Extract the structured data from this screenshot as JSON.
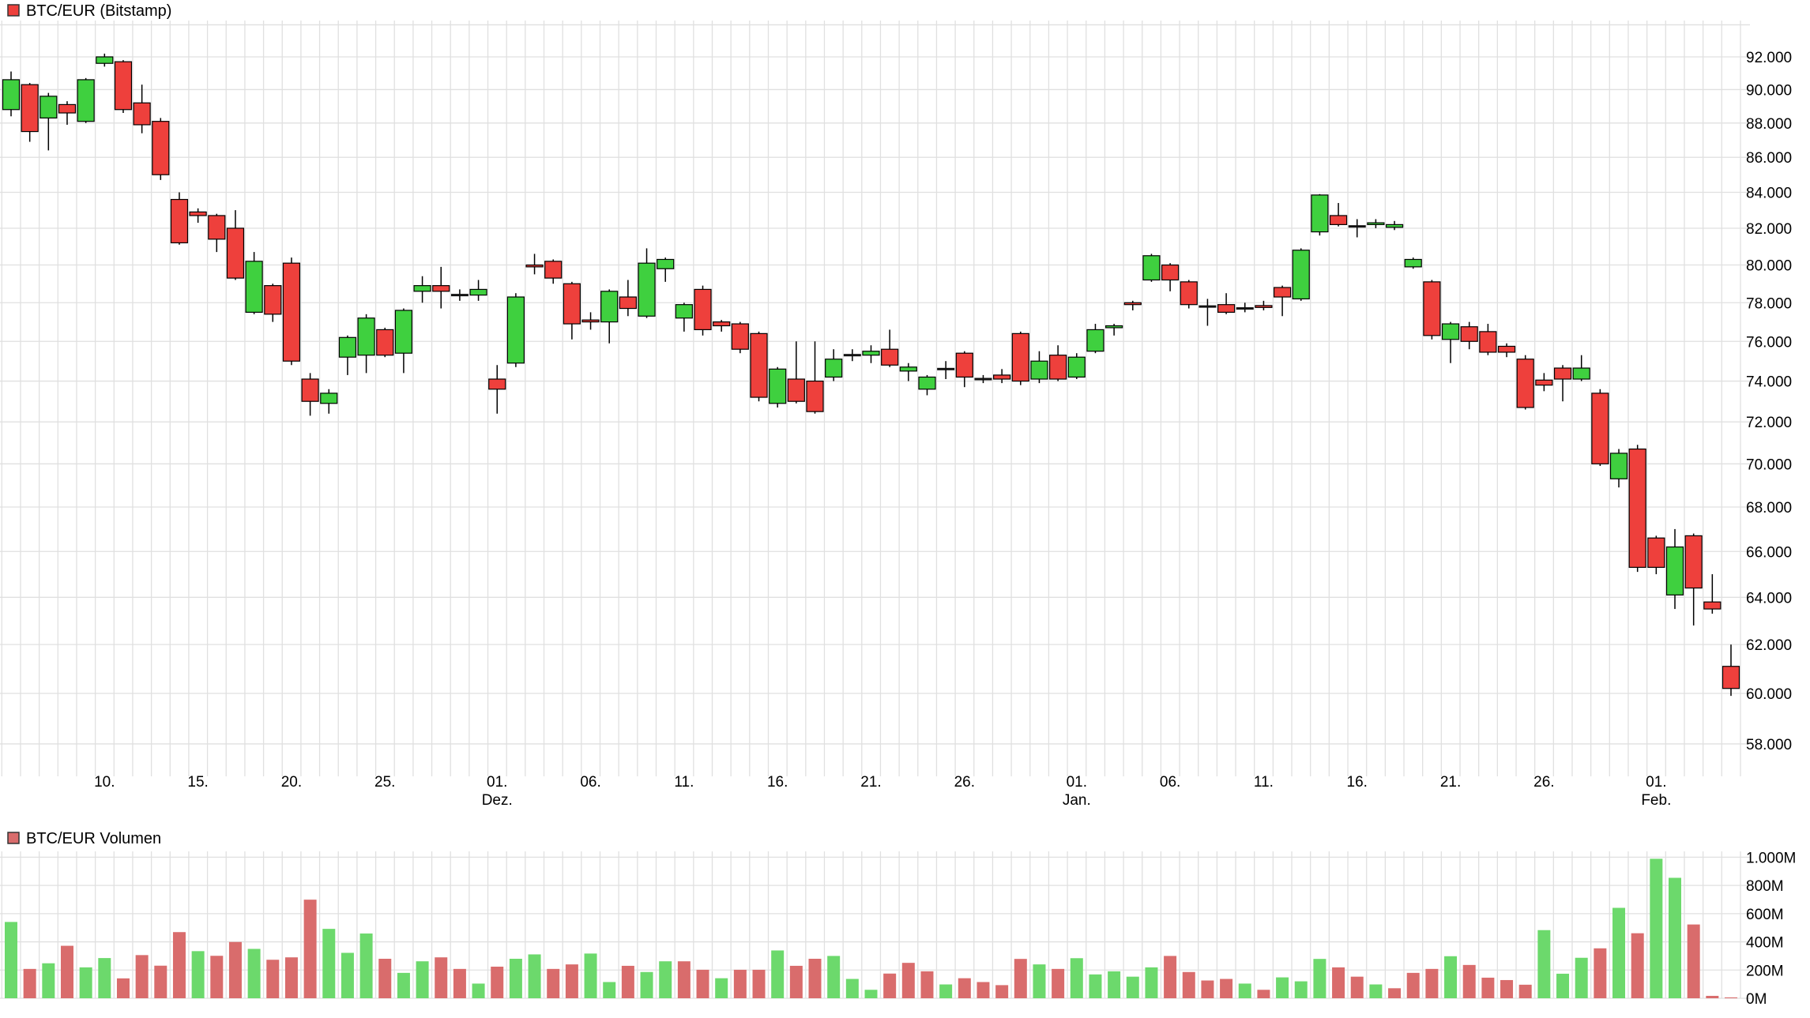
{
  "price_legend": {
    "label": "BTC/EUR (Bitstamp)",
    "marker_color": "#ee403c"
  },
  "volume_legend": {
    "label": "BTC/EUR Volumen",
    "marker_color": "#d96c6c"
  },
  "colors": {
    "candle_up": "#3fd03f",
    "candle_down": "#ee403c",
    "candle_doji": "#111111",
    "wick": "#000000",
    "volume_up": "#6cd96c",
    "volume_down": "#d96c6c",
    "grid": "#e0e0e0",
    "text": "#000000",
    "background": "#ffffff"
  },
  "chart_data": {
    "type": "candlestick",
    "title": "BTC/EUR (Bitstamp)",
    "subtitle_volume": "BTC/EUR Volumen",
    "price_scale": "log",
    "price_unit": "EUR, values in thousands (tick 92 = 92.000)",
    "volume_unit": "M",
    "grid": true,
    "legend_position": "top-left",
    "price_axis_ticks": [
      {
        "value": 94,
        "label": ""
      },
      {
        "value": 92,
        "label": "92.000"
      },
      {
        "value": 90,
        "label": "90.000"
      },
      {
        "value": 88,
        "label": "88.000"
      },
      {
        "value": 86,
        "label": "86.000"
      },
      {
        "value": 84,
        "label": "84.000"
      },
      {
        "value": 82,
        "label": "82.000"
      },
      {
        "value": 80,
        "label": "80.000"
      },
      {
        "value": 78,
        "label": "78.000"
      },
      {
        "value": 76,
        "label": "76.000"
      },
      {
        "value": 74,
        "label": "74.000"
      },
      {
        "value": 72,
        "label": "72.000"
      },
      {
        "value": 70,
        "label": "70.000"
      },
      {
        "value": 68,
        "label": "68.000"
      },
      {
        "value": 66,
        "label": "66.000"
      },
      {
        "value": 64,
        "label": "64.000"
      },
      {
        "value": 62,
        "label": "62.000"
      },
      {
        "value": 60,
        "label": "60.000"
      },
      {
        "value": 58,
        "label": "58.000"
      }
    ],
    "volume_axis_ticks": [
      {
        "value": 1000,
        "label": "1.000M"
      },
      {
        "value": 800,
        "label": "800M"
      },
      {
        "value": 600,
        "label": "600M"
      },
      {
        "value": 400,
        "label": "400M"
      },
      {
        "value": 200,
        "label": "200M"
      },
      {
        "value": 0,
        "label": "0M"
      }
    ],
    "x_axis_labels": [
      {
        "index": 5,
        "label": "10.",
        "month": ""
      },
      {
        "index": 10,
        "label": "15.",
        "month": ""
      },
      {
        "index": 15,
        "label": "20.",
        "month": ""
      },
      {
        "index": 20,
        "label": "25.",
        "month": ""
      },
      {
        "index": 26,
        "label": "01.",
        "month": "Dez."
      },
      {
        "index": 31,
        "label": "06.",
        "month": ""
      },
      {
        "index": 36,
        "label": "11.",
        "month": ""
      },
      {
        "index": 41,
        "label": "16.",
        "month": ""
      },
      {
        "index": 46,
        "label": "21.",
        "month": ""
      },
      {
        "index": 51,
        "label": "26.",
        "month": ""
      },
      {
        "index": 57,
        "label": "01.",
        "month": "Jan."
      },
      {
        "index": 62,
        "label": "06.",
        "month": ""
      },
      {
        "index": 67,
        "label": "11.",
        "month": ""
      },
      {
        "index": 72,
        "label": "16.",
        "month": ""
      },
      {
        "index": 77,
        "label": "21.",
        "month": ""
      },
      {
        "index": 82,
        "label": "26.",
        "month": ""
      },
      {
        "index": 88,
        "label": "01.",
        "month": "Feb."
      }
    ],
    "days": [
      {
        "o": 88.8,
        "h": 91.1,
        "l": 88.4,
        "c": 90.6,
        "v": 541,
        "u": 1
      },
      {
        "o": 90.3,
        "h": 90.4,
        "l": 86.9,
        "c": 87.5,
        "v": 208,
        "u": 0
      },
      {
        "o": 88.3,
        "h": 89.8,
        "l": 86.4,
        "c": 89.6,
        "v": 248,
        "u": 1
      },
      {
        "o": 89.1,
        "h": 89.3,
        "l": 87.9,
        "c": 88.6,
        "v": 372,
        "u": 0
      },
      {
        "o": 88.1,
        "h": 90.7,
        "l": 88.0,
        "c": 90.6,
        "v": 219,
        "u": 1
      },
      {
        "o": 91.6,
        "h": 92.2,
        "l": 91.4,
        "c": 92.0,
        "v": 285,
        "u": 1
      },
      {
        "o": 91.7,
        "h": 91.8,
        "l": 88.6,
        "c": 88.8,
        "v": 141,
        "u": 0
      },
      {
        "o": 89.2,
        "h": 90.3,
        "l": 87.4,
        "c": 87.9,
        "v": 306,
        "u": 0
      },
      {
        "o": 88.1,
        "h": 88.3,
        "l": 84.7,
        "c": 85.0,
        "v": 231,
        "u": 0
      },
      {
        "o": 83.6,
        "h": 84.0,
        "l": 81.1,
        "c": 81.2,
        "v": 469,
        "u": 0
      },
      {
        "o": 82.9,
        "h": 83.1,
        "l": 82.3,
        "c": 82.7,
        "v": 334,
        "u": 1
      },
      {
        "o": 82.7,
        "h": 82.8,
        "l": 80.7,
        "c": 81.4,
        "v": 301,
        "u": 0
      },
      {
        "o": 82.0,
        "h": 83.0,
        "l": 79.2,
        "c": 79.3,
        "v": 399,
        "u": 0
      },
      {
        "o": 77.5,
        "h": 80.7,
        "l": 77.4,
        "c": 80.2,
        "v": 350,
        "u": 1
      },
      {
        "o": 78.9,
        "h": 79.0,
        "l": 77.0,
        "c": 77.4,
        "v": 273,
        "u": 0
      },
      {
        "o": 80.1,
        "h": 80.4,
        "l": 74.8,
        "c": 75.0,
        "v": 290,
        "u": 0
      },
      {
        "o": 74.1,
        "h": 74.4,
        "l": 72.3,
        "c": 73.0,
        "v": 699,
        "u": 0
      },
      {
        "o": 72.9,
        "h": 73.6,
        "l": 72.4,
        "c": 73.4,
        "v": 492,
        "u": 1
      },
      {
        "o": 75.2,
        "h": 76.3,
        "l": 74.3,
        "c": 76.2,
        "v": 322,
        "u": 1
      },
      {
        "o": 75.3,
        "h": 77.4,
        "l": 74.4,
        "c": 77.2,
        "v": 459,
        "u": 1
      },
      {
        "o": 76.6,
        "h": 76.7,
        "l": 75.2,
        "c": 75.3,
        "v": 280,
        "u": 0
      },
      {
        "o": 75.4,
        "h": 77.7,
        "l": 74.4,
        "c": 77.6,
        "v": 180,
        "u": 1
      },
      {
        "o": 78.6,
        "h": 79.4,
        "l": 78.0,
        "c": 78.9,
        "v": 262,
        "u": 1
      },
      {
        "o": 78.9,
        "h": 79.9,
        "l": 77.7,
        "c": 78.6,
        "v": 290,
        "u": 0
      },
      {
        "o": 78.4,
        "h": 78.7,
        "l": 78.1,
        "c": 78.4,
        "v": 208,
        "u": 0
      },
      {
        "o": 78.4,
        "h": 79.2,
        "l": 78.1,
        "c": 78.7,
        "v": 104,
        "u": 1
      },
      {
        "o": 74.1,
        "h": 74.8,
        "l": 72.4,
        "c": 73.6,
        "v": 224,
        "u": 0
      },
      {
        "o": 74.9,
        "h": 78.5,
        "l": 74.7,
        "c": 78.3,
        "v": 280,
        "u": 1
      },
      {
        "o": 80.0,
        "h": 80.6,
        "l": 79.5,
        "c": 79.9,
        "v": 311,
        "u": 1
      },
      {
        "o": 80.2,
        "h": 80.3,
        "l": 79.0,
        "c": 79.3,
        "v": 208,
        "u": 0
      },
      {
        "o": 79.0,
        "h": 79.1,
        "l": 76.1,
        "c": 76.9,
        "v": 240,
        "u": 0
      },
      {
        "o": 77.1,
        "h": 77.5,
        "l": 76.6,
        "c": 77.0,
        "v": 317,
        "u": 1
      },
      {
        "o": 77.0,
        "h": 78.7,
        "l": 75.9,
        "c": 78.6,
        "v": 115,
        "u": 1
      },
      {
        "o": 78.3,
        "h": 79.2,
        "l": 77.3,
        "c": 77.7,
        "v": 230,
        "u": 0
      },
      {
        "o": 77.3,
        "h": 80.9,
        "l": 77.2,
        "c": 80.1,
        "v": 186,
        "u": 1
      },
      {
        "o": 79.8,
        "h": 80.4,
        "l": 79.1,
        "c": 80.3,
        "v": 262,
        "u": 1
      },
      {
        "o": 77.2,
        "h": 78.0,
        "l": 76.5,
        "c": 77.9,
        "v": 262,
        "u": 0
      },
      {
        "o": 78.7,
        "h": 78.9,
        "l": 76.3,
        "c": 76.6,
        "v": 202,
        "u": 0
      },
      {
        "o": 77.0,
        "h": 77.1,
        "l": 76.5,
        "c": 76.8,
        "v": 142,
        "u": 1
      },
      {
        "o": 76.9,
        "h": 77.0,
        "l": 75.4,
        "c": 75.6,
        "v": 202,
        "u": 0
      },
      {
        "o": 76.4,
        "h": 76.5,
        "l": 73.0,
        "c": 73.2,
        "v": 202,
        "u": 0
      },
      {
        "o": 72.9,
        "h": 74.7,
        "l": 72.7,
        "c": 74.6,
        "v": 339,
        "u": 1
      },
      {
        "o": 74.1,
        "h": 76.0,
        "l": 72.9,
        "c": 73.0,
        "v": 230,
        "u": 0
      },
      {
        "o": 74.0,
        "h": 76.0,
        "l": 72.4,
        "c": 72.5,
        "v": 280,
        "u": 0
      },
      {
        "o": 74.2,
        "h": 75.6,
        "l": 74.0,
        "c": 75.1,
        "v": 300,
        "u": 1
      },
      {
        "o": 75.3,
        "h": 75.6,
        "l": 75.0,
        "c": 75.3,
        "v": 137,
        "u": 1
      },
      {
        "o": 75.3,
        "h": 75.8,
        "l": 74.9,
        "c": 75.5,
        "v": 60,
        "u": 1
      },
      {
        "o": 75.6,
        "h": 76.6,
        "l": 74.7,
        "c": 74.8,
        "v": 175,
        "u": 0
      },
      {
        "o": 74.5,
        "h": 74.9,
        "l": 74.0,
        "c": 74.7,
        "v": 251,
        "u": 0
      },
      {
        "o": 73.6,
        "h": 74.3,
        "l": 73.3,
        "c": 74.2,
        "v": 191,
        "u": 0
      },
      {
        "o": 74.6,
        "h": 75.0,
        "l": 74.1,
        "c": 74.6,
        "v": 98,
        "u": 1
      },
      {
        "o": 75.4,
        "h": 75.5,
        "l": 73.7,
        "c": 74.2,
        "v": 142,
        "u": 0
      },
      {
        "o": 74.1,
        "h": 74.3,
        "l": 73.9,
        "c": 74.1,
        "v": 115,
        "u": 0
      },
      {
        "o": 74.3,
        "h": 74.6,
        "l": 73.9,
        "c": 74.1,
        "v": 93,
        "u": 0
      },
      {
        "o": 76.4,
        "h": 76.5,
        "l": 73.8,
        "c": 74.0,
        "v": 279,
        "u": 0
      },
      {
        "o": 74.1,
        "h": 75.5,
        "l": 73.9,
        "c": 75.0,
        "v": 240,
        "u": 1
      },
      {
        "o": 75.3,
        "h": 75.8,
        "l": 74.0,
        "c": 74.1,
        "v": 208,
        "u": 0
      },
      {
        "o": 74.2,
        "h": 75.4,
        "l": 74.1,
        "c": 75.2,
        "v": 284,
        "u": 1
      },
      {
        "o": 75.5,
        "h": 76.9,
        "l": 75.4,
        "c": 76.6,
        "v": 169,
        "u": 1
      },
      {
        "o": 76.7,
        "h": 76.9,
        "l": 76.3,
        "c": 76.8,
        "v": 191,
        "u": 1
      },
      {
        "o": 78.0,
        "h": 78.1,
        "l": 77.6,
        "c": 77.9,
        "v": 153,
        "u": 1
      },
      {
        "o": 79.2,
        "h": 80.6,
        "l": 79.1,
        "c": 80.5,
        "v": 219,
        "u": 1
      },
      {
        "o": 80.0,
        "h": 80.1,
        "l": 78.6,
        "c": 79.2,
        "v": 300,
        "u": 0
      },
      {
        "o": 79.1,
        "h": 79.2,
        "l": 77.7,
        "c": 77.9,
        "v": 186,
        "u": 0
      },
      {
        "o": 77.8,
        "h": 78.2,
        "l": 76.8,
        "c": 77.8,
        "v": 126,
        "u": 0
      },
      {
        "o": 77.9,
        "h": 78.5,
        "l": 77.4,
        "c": 77.5,
        "v": 137,
        "u": 0
      },
      {
        "o": 77.7,
        "h": 78.0,
        "l": 77.5,
        "c": 77.7,
        "v": 104,
        "u": 1
      },
      {
        "o": 77.85,
        "h": 78.1,
        "l": 77.6,
        "c": 77.75,
        "v": 60,
        "u": 0
      },
      {
        "o": 78.8,
        "h": 78.9,
        "l": 77.3,
        "c": 78.3,
        "v": 148,
        "u": 1
      },
      {
        "o": 78.2,
        "h": 80.9,
        "l": 78.1,
        "c": 80.8,
        "v": 120,
        "u": 1
      },
      {
        "o": 81.8,
        "h": 83.9,
        "l": 81.6,
        "c": 83.85,
        "v": 279,
        "u": 1
      },
      {
        "o": 82.7,
        "h": 83.4,
        "l": 82.1,
        "c": 82.2,
        "v": 219,
        "u": 0
      },
      {
        "o": 82.1,
        "h": 82.5,
        "l": 81.5,
        "c": 82.1,
        "v": 153,
        "u": 0
      },
      {
        "o": 82.2,
        "h": 82.5,
        "l": 82.0,
        "c": 82.3,
        "v": 98,
        "u": 1
      },
      {
        "o": 82.05,
        "h": 82.4,
        "l": 81.9,
        "c": 82.2,
        "v": 71,
        "u": 0
      },
      {
        "o": 79.9,
        "h": 80.4,
        "l": 79.8,
        "c": 80.3,
        "v": 180,
        "u": 0
      },
      {
        "o": 79.1,
        "h": 79.2,
        "l": 76.1,
        "c": 76.3,
        "v": 208,
        "u": 0
      },
      {
        "o": 76.1,
        "h": 77.0,
        "l": 74.9,
        "c": 76.9,
        "v": 298,
        "u": 1
      },
      {
        "o": 76.75,
        "h": 77.0,
        "l": 75.6,
        "c": 76.0,
        "v": 236,
        "u": 0
      },
      {
        "o": 76.5,
        "h": 76.9,
        "l": 75.3,
        "c": 75.45,
        "v": 146,
        "u": 0
      },
      {
        "o": 75.75,
        "h": 75.9,
        "l": 75.2,
        "c": 75.45,
        "v": 129,
        "u": 0
      },
      {
        "o": 75.1,
        "h": 75.3,
        "l": 72.6,
        "c": 72.7,
        "v": 96,
        "u": 0
      },
      {
        "o": 74.05,
        "h": 74.4,
        "l": 73.5,
        "c": 73.8,
        "v": 483,
        "u": 1
      },
      {
        "o": 74.65,
        "h": 74.8,
        "l": 73.0,
        "c": 74.1,
        "v": 174,
        "u": 1
      },
      {
        "o": 74.1,
        "h": 75.3,
        "l": 74.0,
        "c": 74.65,
        "v": 287,
        "u": 1
      },
      {
        "o": 73.4,
        "h": 73.6,
        "l": 69.9,
        "c": 70.0,
        "v": 354,
        "u": 0
      },
      {
        "o": 69.3,
        "h": 70.7,
        "l": 68.9,
        "c": 70.5,
        "v": 641,
        "u": 1
      },
      {
        "o": 70.7,
        "h": 70.9,
        "l": 65.1,
        "c": 65.3,
        "v": 461,
        "u": 0
      },
      {
        "o": 66.6,
        "h": 66.7,
        "l": 65.0,
        "c": 65.3,
        "v": 989,
        "u": 1
      },
      {
        "o": 64.1,
        "h": 67.0,
        "l": 63.5,
        "c": 66.2,
        "v": 854,
        "u": 1
      },
      {
        "o": 66.7,
        "h": 66.8,
        "l": 62.8,
        "c": 64.4,
        "v": 523,
        "u": 0
      },
      {
        "o": 63.8,
        "h": 65.0,
        "l": 63.3,
        "c": 63.5,
        "v": 17,
        "u": 0
      },
      {
        "o": 61.1,
        "h": 62.0,
        "l": 59.9,
        "c": 60.2,
        "v": 6,
        "u": 0
      }
    ]
  }
}
